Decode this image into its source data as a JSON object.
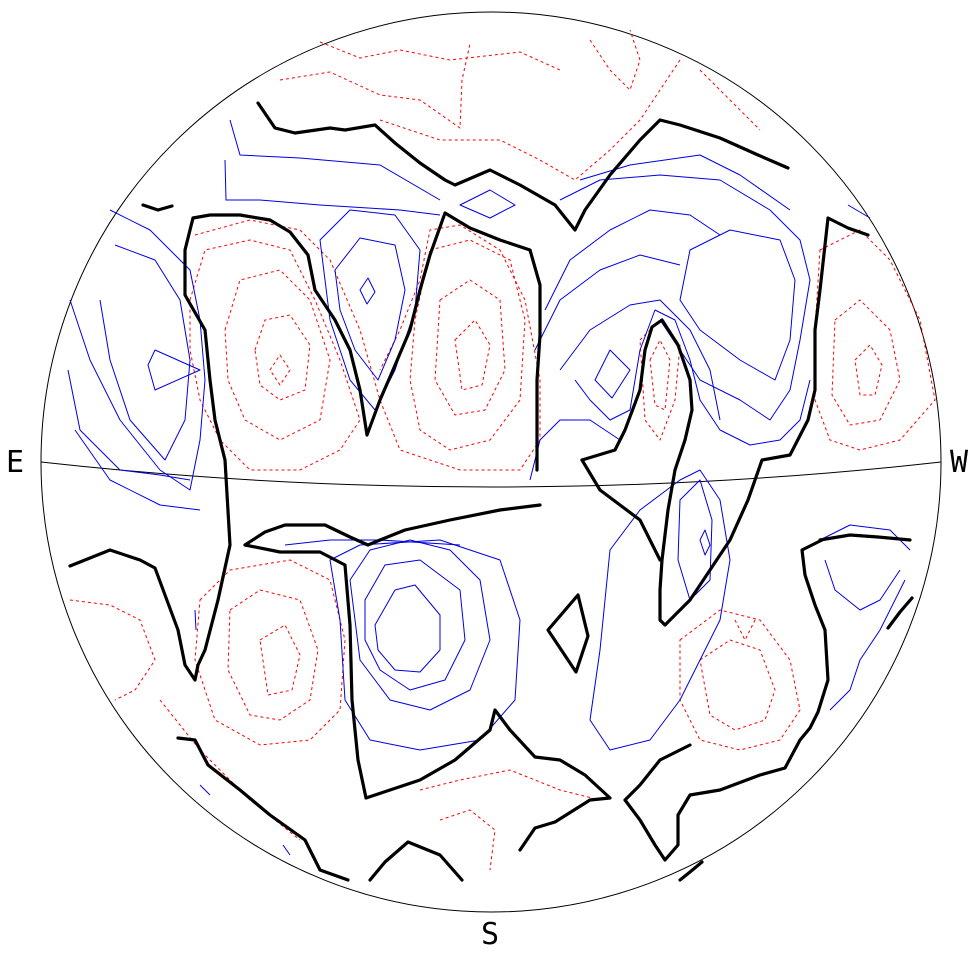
{
  "labels": {
    "east": "E",
    "west": "W",
    "south": "S"
  },
  "colors": {
    "zero_contour": "#000000",
    "positive_contour": "#0000e0",
    "negative_contour": "#ff0000",
    "background": "#ffffff"
  },
  "legend": {
    "zero_contour_style": "thick solid black",
    "positive_contour_style": "thin solid blue",
    "negative_contour_style": "thin dashed red"
  }
}
